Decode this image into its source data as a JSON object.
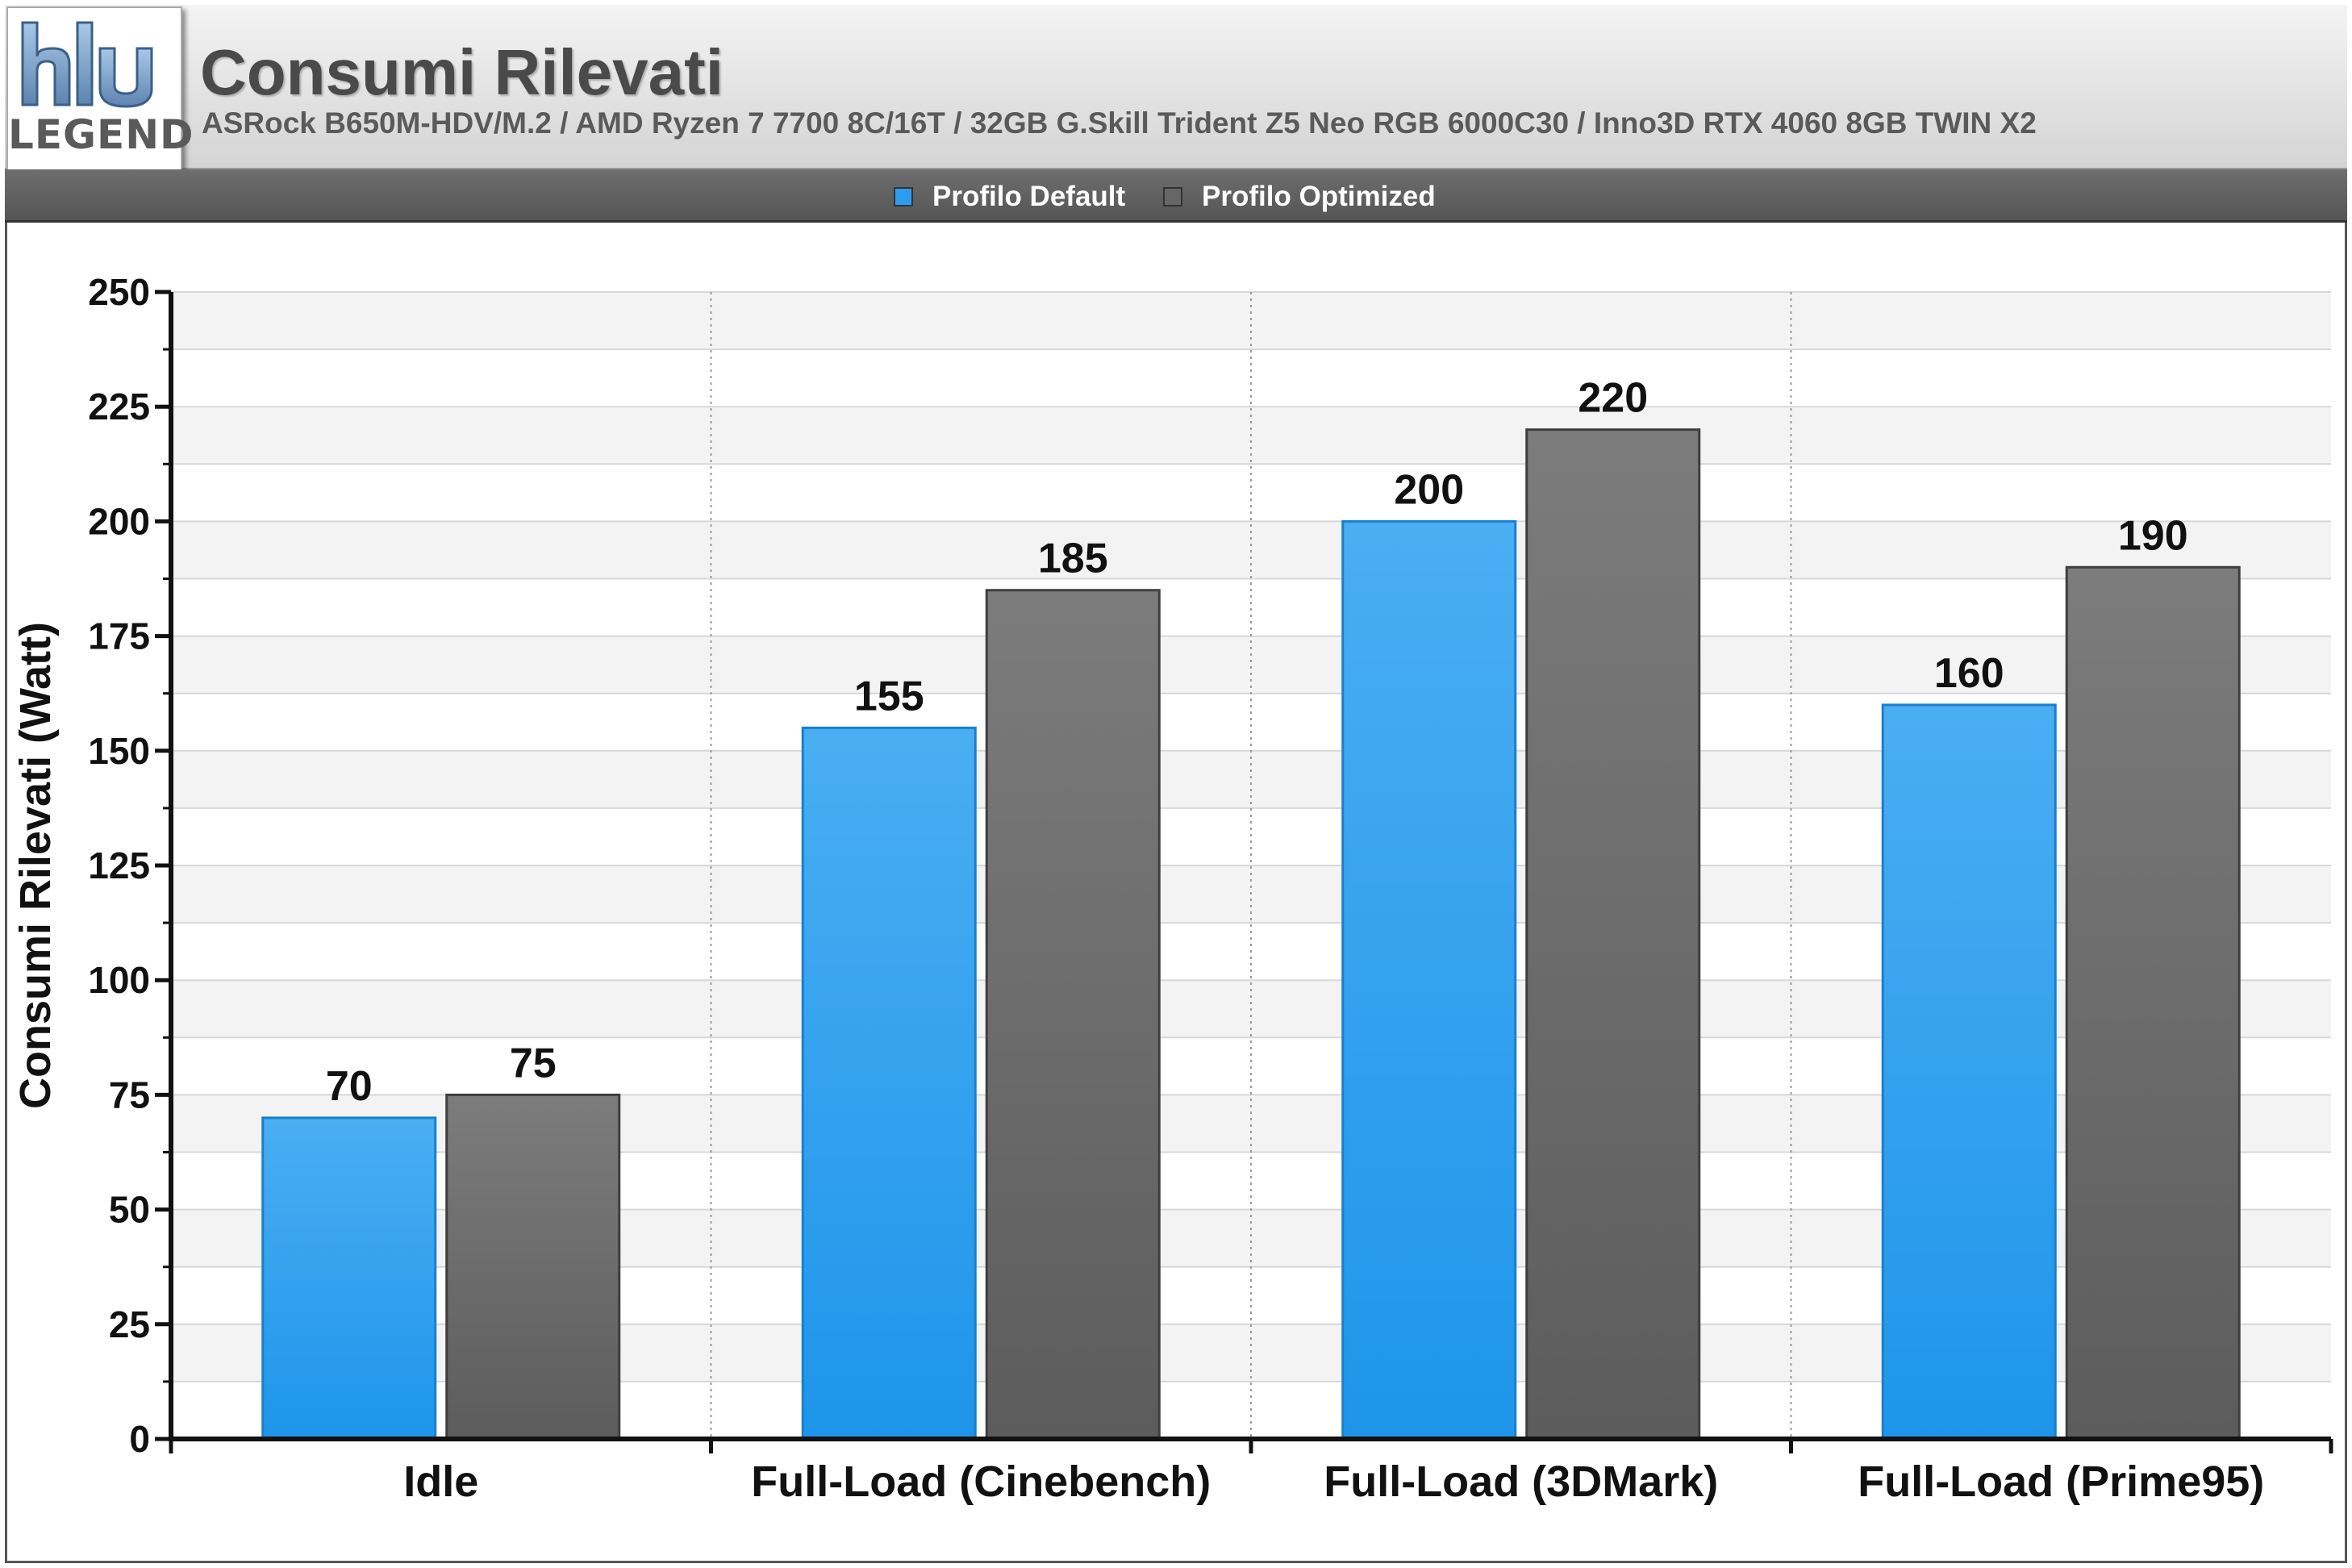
{
  "logo": {
    "text": "LEGEND"
  },
  "chart_data": {
    "type": "bar",
    "title": "Consumi Rilevati",
    "subtitle": "ASRock B650M-HDV/M.2 / AMD Ryzen 7 7700 8C/16T / 32GB G.Skill Trident Z5 Neo RGB 6000C30 / Inno3D RTX 4060 8GB TWIN X2",
    "xlabel": "",
    "ylabel": "Consumi Rilevati (Watt)",
    "ylim": [
      0,
      250
    ],
    "yticks": [
      "0",
      "25",
      "50",
      "75",
      "100",
      "125",
      "150",
      "175",
      "200",
      "225",
      "250"
    ],
    "categories": [
      "Idle",
      "Full-Load (Cinebench)",
      "Full-Load (3DMark)",
      "Full-Load (Prime95)"
    ],
    "series": [
      {
        "name": "Profilo Default",
        "color": "#2a9df0",
        "values": [
          70,
          155,
          200,
          160
        ]
      },
      {
        "name": "Profilo Optimized",
        "color": "#666666",
        "values": [
          75,
          185,
          220,
          190
        ]
      }
    ],
    "legend": "top-center",
    "grid": true
  }
}
